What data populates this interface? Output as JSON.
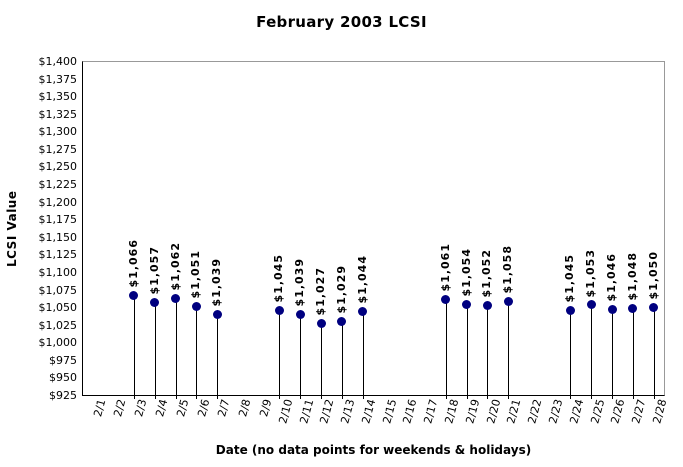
{
  "chart_data": {
    "type": "scatter",
    "title": "February 2003 LCSI",
    "xlabel": "Date (no data points for weekends & holidays)",
    "ylabel": "LCSI Value",
    "ylim": [
      925,
      1400
    ],
    "ytick_values": [
      925,
      950,
      975,
      1000,
      1025,
      1050,
      1075,
      1100,
      1125,
      1150,
      1175,
      1200,
      1225,
      1250,
      1275,
      1300,
      1325,
      1350,
      1375,
      1400
    ],
    "ytick_labels": [
      "$925",
      "$950",
      "$975",
      "$1,000",
      "$1,025",
      "$1,050",
      "$1,075",
      "$1,100",
      "$1,125",
      "$1,150",
      "$1,175",
      "$1,200",
      "$1,225",
      "$1,250",
      "$1,275",
      "$1,300",
      "$1,325",
      "$1,350",
      "$1,375",
      "$1,400"
    ],
    "categories": [
      "2/1",
      "2/2",
      "2/3",
      "2/4",
      "2/5",
      "2/6",
      "2/7",
      "2/8",
      "2/9",
      "2/10",
      "2/11",
      "2/12",
      "2/13",
      "2/14",
      "2/15",
      "2/16",
      "2/17",
      "2/18",
      "2/19",
      "2/20",
      "2/21",
      "2/22",
      "2/23",
      "2/24",
      "2/25",
      "2/26",
      "2/27",
      "2/28"
    ],
    "points": [
      {
        "date": "2/3",
        "value": 1066,
        "label": "$1,066"
      },
      {
        "date": "2/4",
        "value": 1057,
        "label": "$1,057"
      },
      {
        "date": "2/5",
        "value": 1062,
        "label": "$1,062"
      },
      {
        "date": "2/6",
        "value": 1051,
        "label": "$1,051"
      },
      {
        "date": "2/7",
        "value": 1039,
        "label": "$1,039"
      },
      {
        "date": "2/10",
        "value": 1045,
        "label": "$1,045"
      },
      {
        "date": "2/11",
        "value": 1039,
        "label": "$1,039"
      },
      {
        "date": "2/12",
        "value": 1027,
        "label": "$1,027"
      },
      {
        "date": "2/13",
        "value": 1029,
        "label": "$1,029"
      },
      {
        "date": "2/14",
        "value": 1044,
        "label": "$1,044"
      },
      {
        "date": "2/18",
        "value": 1061,
        "label": "$1,061"
      },
      {
        "date": "2/19",
        "value": 1054,
        "label": "$1,054"
      },
      {
        "date": "2/20",
        "value": 1052,
        "label": "$1,052"
      },
      {
        "date": "2/21",
        "value": 1058,
        "label": "$1,058"
      },
      {
        "date": "2/24",
        "value": 1045,
        "label": "$1,045"
      },
      {
        "date": "2/25",
        "value": 1053,
        "label": "$1,053"
      },
      {
        "date": "2/26",
        "value": 1046,
        "label": "$1,046"
      },
      {
        "date": "2/27",
        "value": 1048,
        "label": "$1,048"
      },
      {
        "date": "2/28",
        "value": 1050,
        "label": "$1,050"
      }
    ],
    "marker_color": "#000080",
    "drop_line_color": "#000000",
    "axis_color": "#000000",
    "frame_color": "#999999",
    "background": "#ffffff",
    "grid": false,
    "legend_position": "none"
  }
}
